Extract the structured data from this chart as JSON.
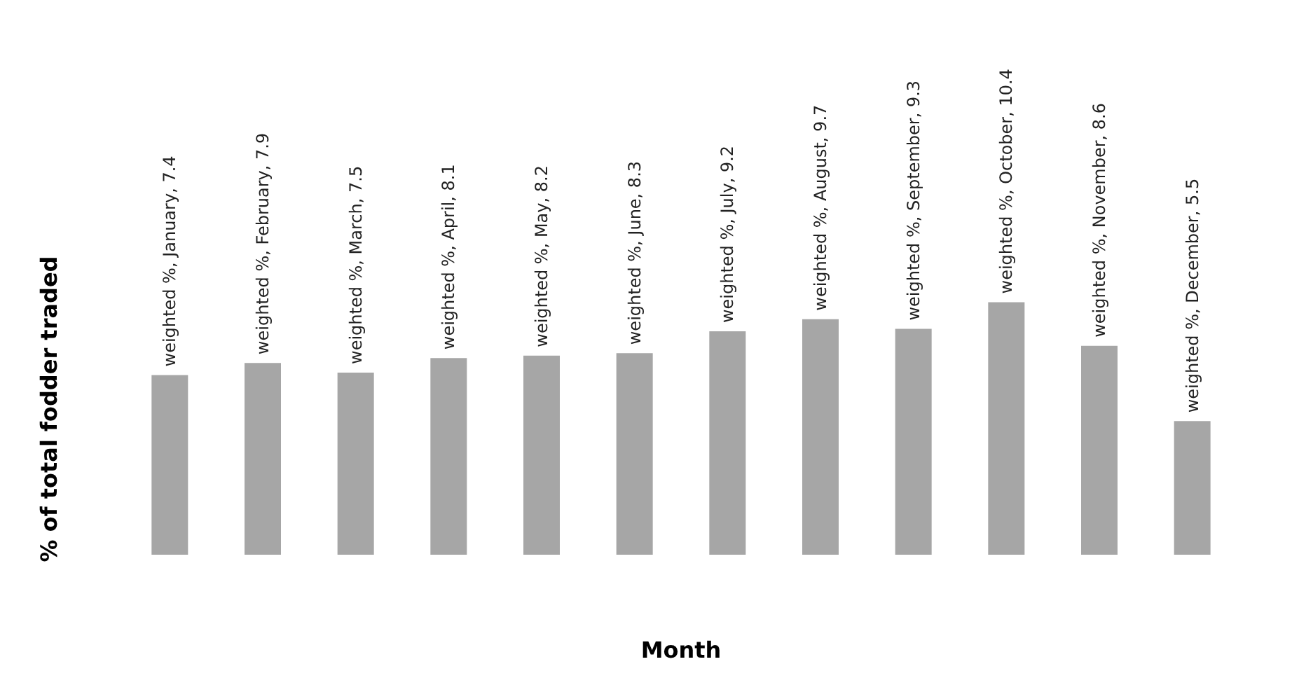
{
  "chart_data": {
    "type": "bar",
    "xlabel": "Month",
    "ylabel": "% of total fodder traded",
    "categories": [
      null,
      null,
      null,
      null,
      null,
      null,
      null,
      null,
      null,
      null,
      null,
      null
    ],
    "values": [
      7.4,
      7.9,
      7.5,
      8.1,
      8.2,
      8.3,
      9.2,
      9.7,
      9.3,
      10.4,
      8.6,
      5.5
    ],
    "value_labels": [
      "weighted %, January, 7.4",
      "weighted %, February, 7.9",
      "weighted %, March, 7.5",
      "weighted %, April, 8.1",
      "weighted %, May, 8.2",
      "weighted %, June, 8.3",
      "weighted %, July, 9.2",
      "weighted %, August, 9.7",
      "weighted %, September, 9.3",
      "weighted %, October, 10.4",
      "weighted %, November, 8.6",
      "weighted %, December, 5.5"
    ],
    "color": "#a6a6a6",
    "grid": false,
    "tick_labels": false
  }
}
